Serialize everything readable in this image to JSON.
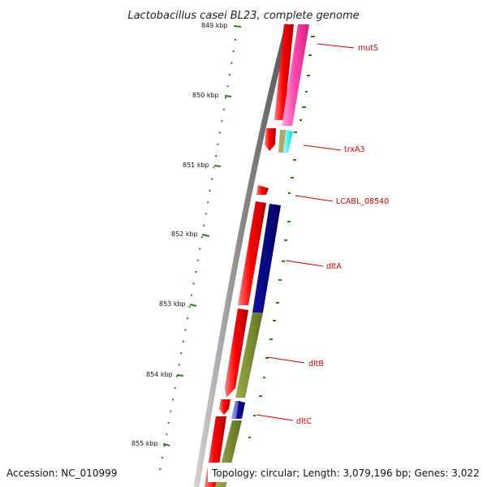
{
  "title": "Lactobacillus casei BL23, complete genome",
  "footer": {
    "accession": "Accession: NC_010999",
    "topology": "Topology: circular; Length: 3,079,196 bp; Genes: 3,022"
  },
  "ticks": [
    "849 kbp",
    "850 kbp",
    "851 kbp",
    "852 kbp",
    "853 kbp",
    "854 kbp",
    "855 kbp"
  ],
  "genes": [
    "mutS",
    "trxA3",
    "LCABL_08540",
    "dltA",
    "dltB",
    "dltC"
  ],
  "colors": {
    "cds_strand": "#ff0000",
    "cog_L": "#ff44aa",
    "cog_O": "#00ffff",
    "cog_olive": "#b3a86a",
    "cog_I": "#000080",
    "cog_M": "#7a8f2e",
    "cog_Q": "#6b6bd6",
    "skew": "#2e7d1a",
    "backbone": "#8c8c8c",
    "label": "#cc0000"
  }
}
